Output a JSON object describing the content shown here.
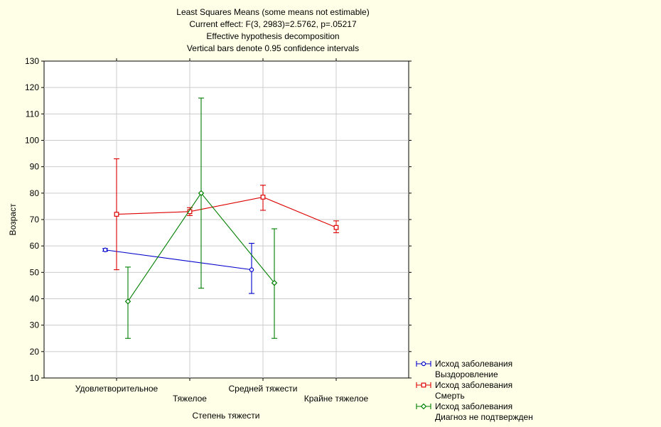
{
  "chart_data": {
    "type": "line",
    "title_lines": [
      "Least Squares Means (some means not estimable)",
      "Current effect: F(3, 2983)=2.5762, p=.05217",
      "Effective hypothesis decomposition",
      "Vertical bars denote 0.95 confidence intervals"
    ],
    "xlabel": "Степень тяжести",
    "ylabel": "Возраст",
    "categories": [
      "Удовлетворительное",
      "Тяжелое",
      "Средней тяжести",
      "Крайне тяжелое"
    ],
    "ylim": [
      10,
      130
    ],
    "yticks": [
      10,
      20,
      30,
      40,
      50,
      60,
      70,
      80,
      90,
      100,
      110,
      120,
      130
    ],
    "grid": true,
    "legend_placement": "bottom-right",
    "series": [
      {
        "name": "Исход заболевания",
        "sublabel": "Выздоровление",
        "color": "#0000cc",
        "marker": "circle",
        "values": [
          58.5,
          null,
          51,
          null
        ],
        "ci_low": [
          58,
          null,
          42,
          null
        ],
        "ci_high": [
          59,
          null,
          61,
          null
        ]
      },
      {
        "name": "Исход заболевания",
        "sublabel": "Смерть",
        "color": "#dd0000",
        "marker": "square",
        "values": [
          72,
          73,
          78.5,
          67
        ],
        "ci_low": [
          51,
          71.5,
          73.5,
          65
        ],
        "ci_high": [
          93,
          74.5,
          83,
          69.5
        ]
      },
      {
        "name": "Исход заболевания",
        "sublabel": "Диагноз не подтвержден",
        "color": "#007f00",
        "marker": "diamond",
        "values": [
          39,
          80,
          46,
          null
        ],
        "ci_low": [
          25,
          44,
          25,
          null
        ],
        "ci_high": [
          52,
          116,
          66.5,
          null
        ]
      }
    ]
  }
}
